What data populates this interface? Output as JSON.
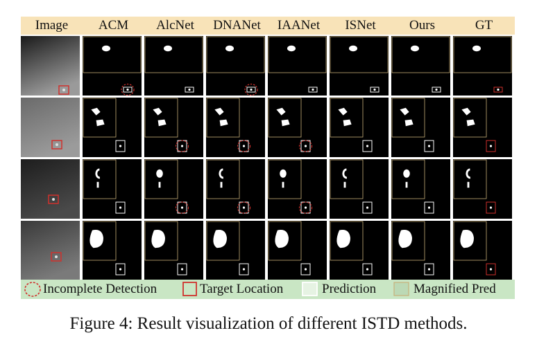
{
  "header": {
    "columns": [
      "Image",
      "ACM",
      "AlcNet",
      "DNANet",
      "IAANet",
      "ISNet",
      "Ours",
      "GT"
    ]
  },
  "rows": [
    {
      "input": {
        "bg_top": "#1a1a1a",
        "bg_bottom": "#9a9a9a"
      },
      "blob": "small",
      "per_column_incomplete": [
        false,
        true,
        false,
        true,
        false,
        false,
        false,
        false
      ]
    },
    {
      "input": {
        "bg_top": "#6a6a6a",
        "bg_bottom": "#9b9b9b"
      },
      "blob": "pair",
      "per_column_incomplete": [
        false,
        false,
        true,
        true,
        true,
        false,
        false,
        false
      ]
    },
    {
      "input": {
        "bg_top": "#1d1d1d",
        "bg_bottom": "#4a4a4a"
      },
      "blob": "ring",
      "per_column_incomplete": [
        false,
        false,
        true,
        true,
        true,
        false,
        false,
        false
      ]
    },
    {
      "input": {
        "bg_top": "#3a3a3a",
        "bg_bottom": "#7a7a7a"
      },
      "blob": "big",
      "per_column_incomplete": [
        false,
        false,
        false,
        false,
        false,
        false,
        false,
        false
      ]
    }
  ],
  "legend": {
    "incomplete": "Incomplete Detection",
    "target": "Target Location",
    "prediction": "Prediction",
    "magnified": "Magnified Pred"
  },
  "colors": {
    "header_bg": "#f8e3b8",
    "legend_bg": "#c9e6c4",
    "target_box": "#d0312d",
    "incomplete_circle": "#d0312d",
    "prediction_box": "#ffffff",
    "magnified_box": "#c8b07a"
  },
  "caption": "Figure 4: Result visualization of different ISTD methods."
}
